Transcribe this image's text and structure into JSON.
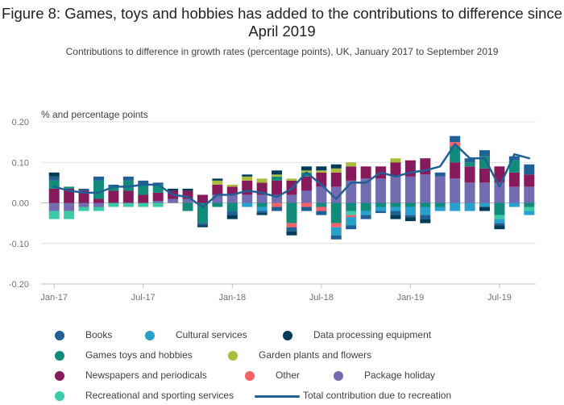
{
  "title": "Figure 8: Games, toys and hobbies has added to the contributions to difference since April 2019",
  "subtitle": "Contributions to difference in growth rates (percentage points), UK, January 2017 to September 2019",
  "chart_data": {
    "type": "bar",
    "stacked": true,
    "ylabel": "% and percentage points",
    "ylim": [
      -0.2,
      0.2
    ],
    "yticks": [
      0.2,
      0.1,
      0.0,
      -0.1,
      -0.2
    ],
    "ytick_labels": [
      "0.20",
      "0.10",
      "0.00",
      "-0.10",
      "-0.20"
    ],
    "xtick_labels": [
      "Jan-17",
      "Jul-17",
      "Jan-18",
      "Jul-18",
      "Jan-19",
      "Jul-19"
    ],
    "xtick_index": [
      0,
      6,
      12,
      18,
      24,
      30
    ],
    "categories": [
      "Jan-17",
      "Feb-17",
      "Mar-17",
      "Apr-17",
      "May-17",
      "Jun-17",
      "Jul-17",
      "Aug-17",
      "Sep-17",
      "Oct-17",
      "Nov-17",
      "Dec-17",
      "Jan-18",
      "Feb-18",
      "Mar-18",
      "Apr-18",
      "May-18",
      "Jun-18",
      "Jul-18",
      "Aug-18",
      "Sep-18",
      "Oct-18",
      "Nov-18",
      "Dec-18",
      "Jan-19",
      "Feb-19",
      "Mar-19",
      "Apr-19",
      "May-19",
      "Jun-19",
      "Jul-19",
      "Aug-19",
      "Sep-19"
    ],
    "grid": true,
    "legend_position": "bottom",
    "series": [
      {
        "name": "Package holiday",
        "color": "#746cb1",
        "values": [
          -0.02,
          -0.02,
          -0.01,
          -0.01,
          0,
          0,
          0,
          0.005,
          0.01,
          0.01,
          0,
          0.02,
          0.02,
          0.02,
          0.02,
          0.02,
          0.02,
          0.03,
          0.04,
          0.04,
          0.055,
          0.06,
          0.06,
          0.065,
          0.065,
          0.07,
          0.065,
          0.06,
          0.05,
          0.05,
          0.05,
          0.04,
          0.04
        ]
      },
      {
        "name": "Newspapers and periodicals",
        "color": "#871a5b",
        "values": [
          0.035,
          0.035,
          0.03,
          0.01,
          0.03,
          0.03,
          0.02,
          0.02,
          0.02,
          0.02,
          0.02,
          0.025,
          0.02,
          0.035,
          0.03,
          0.035,
          0.035,
          0.035,
          0.035,
          0.035,
          0.035,
          0.03,
          0.03,
          0.035,
          0.04,
          0.04,
          0,
          0.04,
          0.04,
          0.035,
          0.04,
          0.035,
          0.03
        ]
      },
      {
        "name": "Games toys and hobbies",
        "color": "#118c7b",
        "values": [
          0.02,
          0.005,
          0,
          0.045,
          0.01,
          0.025,
          0.025,
          0.02,
          0,
          -0.02,
          -0.05,
          -0.01,
          -0.02,
          0,
          -0.01,
          0.01,
          -0.05,
          0.01,
          -0.01,
          -0.05,
          -0.02,
          -0.02,
          -0.01,
          -0.01,
          -0.01,
          -0.01,
          -0.01,
          0.04,
          0.01,
          0.03,
          -0.03,
          0.03,
          -0.01
        ]
      },
      {
        "name": "Garden plants and flowers",
        "color": "#a8bd3a",
        "values": [
          0,
          0,
          0,
          0,
          0,
          0,
          0,
          0,
          0,
          0,
          0,
          0.01,
          0.005,
          0.01,
          0.01,
          0.005,
          0.005,
          0.005,
          0.005,
          0.01,
          0.01,
          0,
          0,
          0.01,
          0,
          0,
          0,
          0,
          0,
          0,
          0,
          0,
          0
        ]
      },
      {
        "name": "Recreational and sporting services",
        "color": "#3cc9a8",
        "values": [
          -0.02,
          -0.02,
          -0.01,
          -0.01,
          -0.01,
          -0.01,
          -0.01,
          -0.01,
          0,
          0,
          0,
          0,
          0,
          0,
          0,
          0,
          0,
          0,
          0,
          0,
          -0.01,
          0,
          0,
          0,
          0,
          0,
          0,
          0,
          0,
          0,
          -0.01,
          0,
          -0.01
        ]
      },
      {
        "name": "Other",
        "color": "#f66068",
        "values": [
          0,
          0,
          0,
          0,
          0,
          0,
          0,
          0,
          0,
          0,
          0,
          0,
          0,
          0,
          0,
          -0.01,
          -0.01,
          -0.01,
          -0.01,
          -0.01,
          -0.005,
          0,
          0,
          0,
          0,
          0,
          0,
          0.01,
          0,
          0,
          0,
          0,
          0
        ]
      },
      {
        "name": "Cultural services",
        "color": "#27a0cc",
        "values": [
          0,
          0,
          0,
          0,
          0,
          0,
          0,
          0,
          0,
          0,
          0,
          0,
          0,
          -0.01,
          -0.01,
          0,
          0,
          0,
          0,
          -0.02,
          -0.02,
          -0.01,
          -0.01,
          -0.01,
          -0.02,
          -0.02,
          -0.01,
          -0.02,
          -0.02,
          -0.01,
          -0.01,
          -0.01,
          -0.01
        ]
      },
      {
        "name": "Books",
        "color": "#206095",
        "values": [
          0.01,
          0,
          0.005,
          0.01,
          0.005,
          0.01,
          0.01,
          0.005,
          0,
          0,
          -0.005,
          0,
          -0.01,
          0,
          -0.005,
          -0.01,
          -0.01,
          -0.01,
          -0.01,
          -0.01,
          -0.01,
          -0.01,
          -0.005,
          -0.01,
          -0.005,
          -0.01,
          0.01,
          0.015,
          0.01,
          0.015,
          -0.005,
          0.01,
          0.025
        ]
      },
      {
        "name": "Data processing equipment",
        "color": "#003c57",
        "values": [
          0.01,
          0,
          0,
          0,
          0,
          0,
          0,
          0,
          0.005,
          0.005,
          -0.005,
          0.005,
          -0.01,
          0.005,
          -0.005,
          0.01,
          -0.01,
          0.01,
          0.01,
          0.01,
          0,
          0,
          0,
          -0.01,
          -0.01,
          -0.01,
          0,
          0,
          0,
          -0.01,
          -0.01,
          0,
          0
        ]
      },
      {
        "name": "Total contribution due to recreation",
        "color": "#206095",
        "type": "line",
        "values": [
          0.04,
          0.03,
          0.025,
          0.025,
          0.04,
          0.04,
          0.045,
          0.045,
          0.02,
          0.015,
          -0.01,
          0.02,
          0.02,
          0.03,
          0.025,
          0.015,
          0.035,
          0.075,
          0.045,
          0.01,
          0.05,
          0.05,
          0.075,
          0.065,
          0.075,
          0.08,
          0.09,
          0.145,
          0.11,
          0.11,
          0.04,
          0.12,
          0.11
        ]
      }
    ]
  },
  "legend": {
    "items": [
      {
        "label": "Books",
        "color": "#206095",
        "kind": "dot"
      },
      {
        "label": "Cultural services",
        "color": "#27a0cc",
        "kind": "dot"
      },
      {
        "label": "Data processing equipment",
        "color": "#003c57",
        "kind": "dot"
      },
      {
        "label": "Games toys and hobbies",
        "color": "#118c7b",
        "kind": "dot"
      },
      {
        "label": "Garden plants and flowers",
        "color": "#a8bd3a",
        "kind": "dot"
      },
      {
        "label": "Newspapers and periodicals",
        "color": "#871a5b",
        "kind": "dot"
      },
      {
        "label": "Other",
        "color": "#f66068",
        "kind": "dot"
      },
      {
        "label": "Package holiday",
        "color": "#746cb1",
        "kind": "dot"
      },
      {
        "label": "Recreational and sporting services",
        "color": "#3cc9a8",
        "kind": "dot"
      },
      {
        "label": "Total contribution due to recreation",
        "color": "#206095",
        "kind": "line"
      }
    ]
  }
}
